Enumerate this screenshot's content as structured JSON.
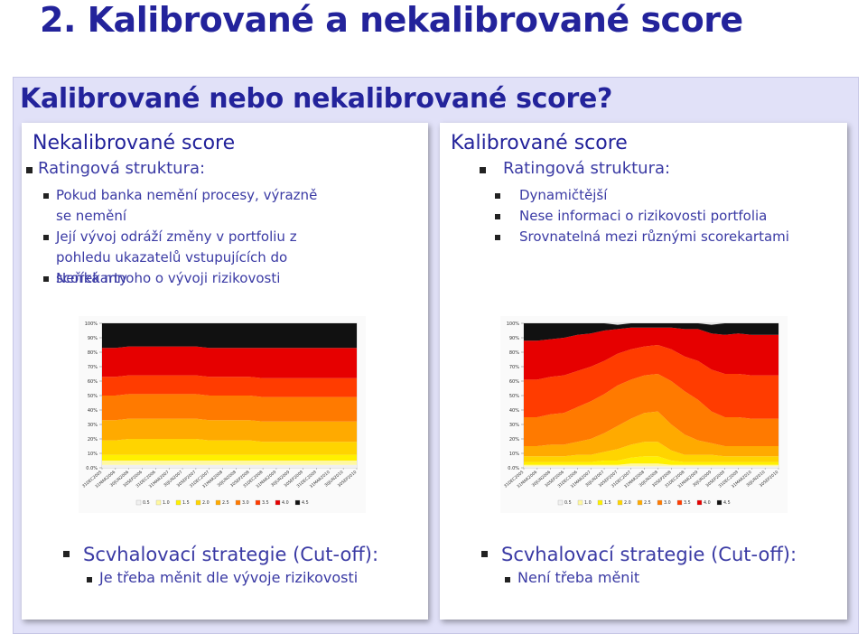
{
  "slide": {
    "title": "2. Kalibrované a nekalibrované score",
    "subtitle": "Kalibrované nebo nekalibrované score?"
  },
  "left": {
    "heading": "Nekalibrované score",
    "level1": "Ratingová struktura:",
    "items": [
      "Pokud banka nemění procesy, výrazně se nemění",
      "Její vývoj odráží změny v portfoliu z pohledu ukazatelů vstupujících do scorekarty",
      "Neříká mnoho o vývoji rizikovosti"
    ],
    "footer_title": "Scvhalovací strategie (Cut-off):",
    "footer_item": "Je třeba měnit dle vývoje rizikovosti"
  },
  "right": {
    "heading": "Kalibrované score",
    "level1": "Ratingová struktura:",
    "items": [
      "Dynamičtější",
      "Nese informaci o rizikovosti portfolia",
      "Srovnatelná mezi různými scorekartami"
    ],
    "footer_title": "Scvhalovací strategie (Cut-off):",
    "footer_item": "Není třeba měnit"
  },
  "chart_data": [
    {
      "type": "area",
      "stacked": true,
      "y_ticks": [
        "0.0%",
        "10%",
        "20%",
        "30%",
        "40%",
        "50%",
        "60%",
        "70%",
        "80%",
        "90%",
        "100%"
      ],
      "x": [
        "31DEC2005",
        "31MAR2006",
        "30JUN2006",
        "30SEP2006",
        "31DEC2006",
        "31MAR2007",
        "30JUN2007",
        "30SEP2007",
        "31DEC2007",
        "31MAR2008",
        "30JUN2008",
        "30SEP2008",
        "31DEC2008",
        "31MAR2009",
        "30JUN2009",
        "30SEP2009",
        "31DEC2009",
        "31MAR2010",
        "30JUN2010",
        "30SEP2010"
      ],
      "legend": [
        "0.5",
        "1.0",
        "1.5",
        "2.0",
        "2.5",
        "3.0",
        "3.5",
        "4.0",
        "4.5"
      ],
      "colors": [
        "#f0f0f0",
        "#fff8a0",
        "#fff000",
        "#ffd400",
        "#ffaa00",
        "#ff7a00",
        "#ff3c00",
        "#e60000",
        "#111111"
      ],
      "series": [
        {
          "name": "0.5",
          "values": [
            2,
            2,
            2,
            2,
            2,
            2,
            2,
            2,
            2,
            2,
            2,
            2,
            2,
            2,
            2,
            2,
            2,
            2,
            2,
            2
          ]
        },
        {
          "name": "1.0",
          "values": [
            3,
            3,
            3,
            3,
            3,
            3,
            3,
            3,
            3,
            3,
            3,
            3,
            3,
            3,
            3,
            3,
            3,
            3,
            3,
            3
          ]
        },
        {
          "name": "1.5",
          "values": [
            4,
            4,
            4,
            4,
            4,
            4,
            4,
            4,
            4,
            4,
            4,
            4,
            4,
            4,
            4,
            4,
            4,
            4,
            4,
            4
          ]
        },
        {
          "name": "2.0",
          "values": [
            10,
            10,
            11,
            11,
            11,
            11,
            11,
            11,
            10,
            10,
            10,
            10,
            9,
            9,
            9,
            9,
            9,
            9,
            9,
            9
          ]
        },
        {
          "name": "2.5",
          "values": [
            14,
            14,
            14,
            14,
            14,
            14,
            14,
            14,
            14,
            14,
            14,
            14,
            14,
            14,
            14,
            14,
            14,
            14,
            14,
            14
          ]
        },
        {
          "name": "3.0",
          "values": [
            17,
            17,
            17,
            17,
            17,
            17,
            17,
            17,
            17,
            17,
            17,
            17,
            17,
            17,
            17,
            17,
            17,
            17,
            17,
            17
          ]
        },
        {
          "name": "3.5",
          "values": [
            13,
            13,
            13,
            13,
            13,
            13,
            13,
            13,
            13,
            13,
            13,
            13,
            13,
            13,
            13,
            13,
            13,
            13,
            13,
            13
          ]
        },
        {
          "name": "4.0",
          "values": [
            20,
            20,
            20,
            20,
            20,
            20,
            20,
            20,
            20,
            20,
            20,
            20,
            21,
            21,
            21,
            21,
            21,
            21,
            21,
            21
          ]
        },
        {
          "name": "4.5",
          "values": [
            17,
            17,
            16,
            16,
            16,
            16,
            16,
            16,
            17,
            17,
            17,
            17,
            17,
            17,
            17,
            17,
            17,
            17,
            17,
            17
          ]
        }
      ]
    },
    {
      "type": "area",
      "stacked": true,
      "y_ticks": [
        "0.0%",
        "10%",
        "20%",
        "30%",
        "40%",
        "50%",
        "60%",
        "70%",
        "80%",
        "90%",
        "100%"
      ],
      "x": [
        "31DEC2005",
        "31MAR2006",
        "30JUN2006",
        "30SEP2006",
        "31DEC2006",
        "31MAR2007",
        "30JUN2007",
        "30SEP2007",
        "31DEC2007",
        "31MAR2008",
        "30JUN2008",
        "30SEP2008",
        "31DEC2008",
        "31MAR2009",
        "30JUN2009",
        "30SEP2009",
        "31DEC2009",
        "31MAR2010",
        "30JUN2010",
        "30SEP2010"
      ],
      "legend": [
        "0.5",
        "1.0",
        "1.5",
        "2.0",
        "2.5",
        "3.0",
        "3.5",
        "4.0",
        "4.5"
      ],
      "colors": [
        "#f0f0f0",
        "#fff8a0",
        "#fff000",
        "#ffd400",
        "#ffaa00",
        "#ff7a00",
        "#ff3c00",
        "#e60000",
        "#111111"
      ],
      "series": [
        {
          "name": "0.5",
          "values": [
            1,
            1,
            1,
            1,
            1,
            1,
            1,
            1,
            1,
            1,
            1,
            1,
            1,
            1,
            1,
            1,
            1,
            1,
            1,
            1
          ]
        },
        {
          "name": "1.0",
          "values": [
            1,
            1,
            1,
            1,
            1,
            1,
            1,
            1,
            2,
            2,
            2,
            1,
            1,
            1,
            1,
            1,
            1,
            1,
            1,
            1
          ]
        },
        {
          "name": "1.5",
          "values": [
            2,
            2,
            2,
            2,
            2,
            2,
            3,
            3,
            4,
            5,
            5,
            3,
            2,
            2,
            2,
            2,
            2,
            2,
            2,
            2
          ]
        },
        {
          "name": "2.0",
          "values": [
            4,
            4,
            4,
            4,
            5,
            5,
            6,
            8,
            9,
            10,
            10,
            7,
            5,
            5,
            5,
            4,
            4,
            4,
            4,
            4
          ]
        },
        {
          "name": "2.5",
          "values": [
            7,
            7,
            8,
            8,
            9,
            11,
            13,
            16,
            18,
            20,
            21,
            18,
            14,
            10,
            8,
            7,
            7,
            7,
            7,
            7
          ]
        },
        {
          "name": "3.0",
          "values": [
            20,
            20,
            21,
            22,
            24,
            26,
            27,
            28,
            27,
            26,
            26,
            30,
            30,
            28,
            22,
            20,
            20,
            19,
            19,
            19
          ]
        },
        {
          "name": "3.5",
          "values": [
            26,
            26,
            26,
            26,
            25,
            24,
            23,
            22,
            21,
            20,
            20,
            22,
            24,
            27,
            29,
            30,
            30,
            30,
            30,
            30
          ]
        },
        {
          "name": "4.0",
          "values": [
            27,
            27,
            26,
            26,
            25,
            23,
            21,
            17,
            15,
            13,
            12,
            15,
            19,
            22,
            25,
            27,
            28,
            28,
            28,
            28
          ]
        },
        {
          "name": "4.5",
          "values": [
            12,
            12,
            11,
            10,
            8,
            7,
            5,
            3,
            3,
            3,
            3,
            3,
            4,
            4,
            6,
            8,
            8,
            8,
            8,
            8
          ]
        }
      ]
    }
  ]
}
